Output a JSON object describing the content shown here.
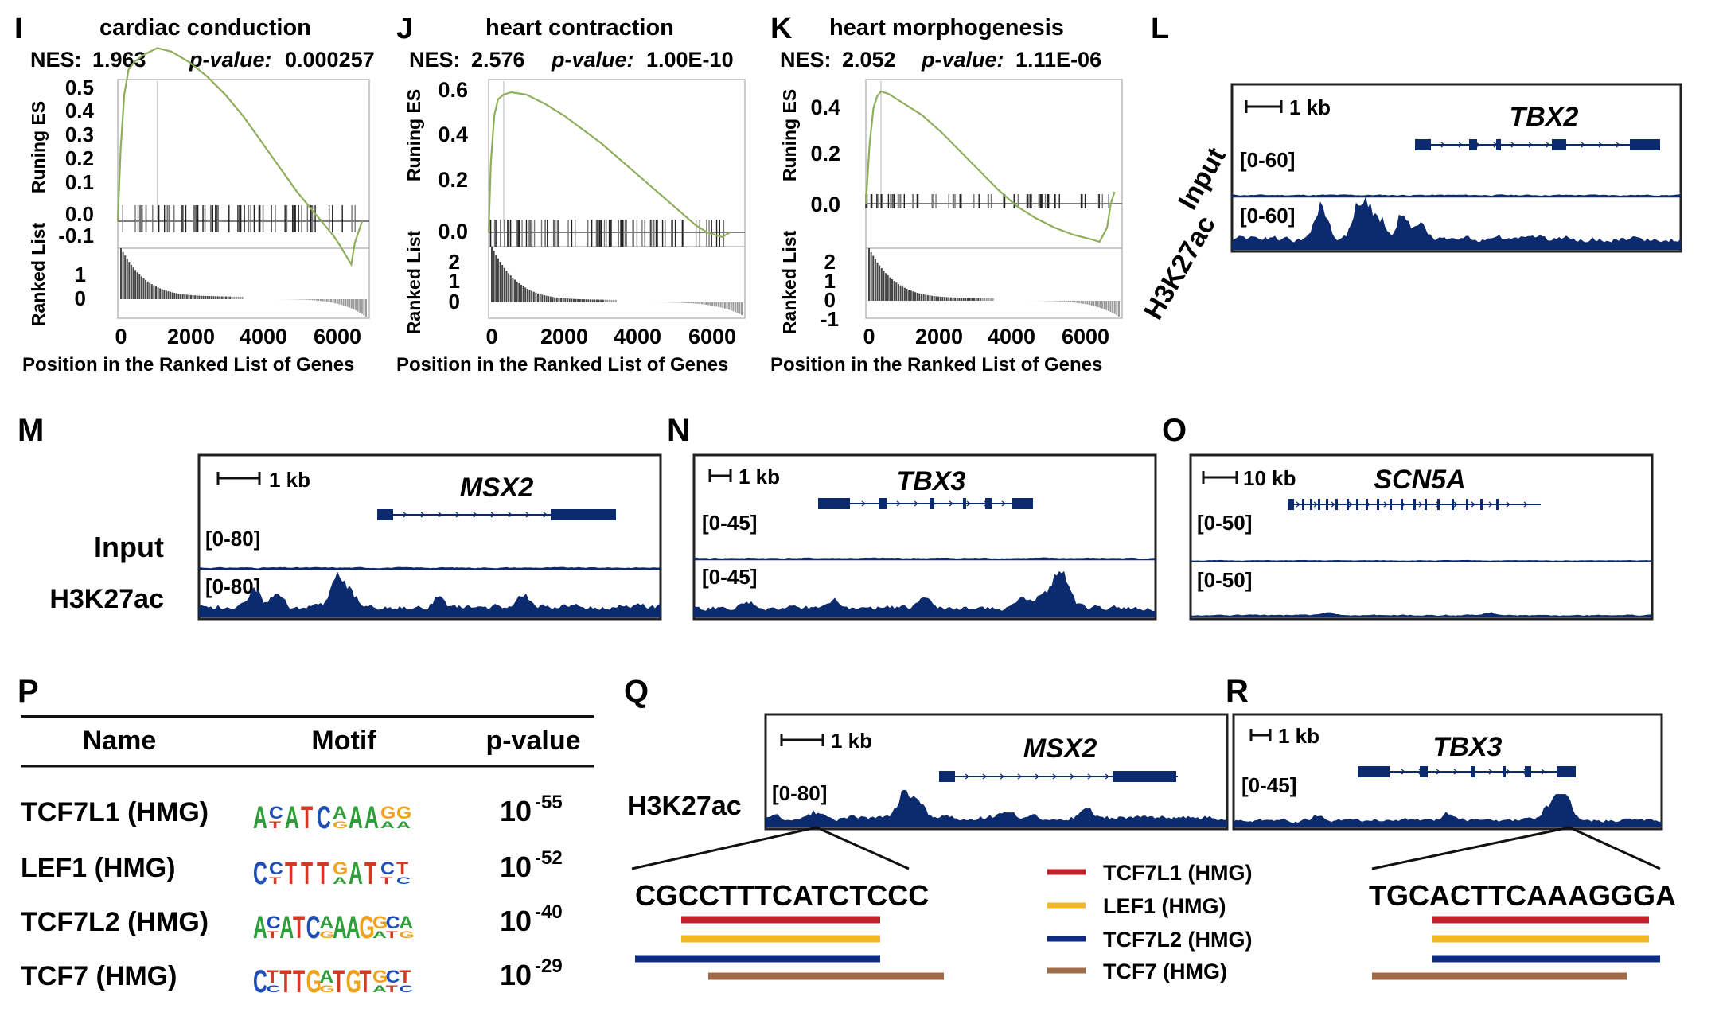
{
  "panel_letters": {
    "I": "I",
    "J": "J",
    "K": "K",
    "L": "L",
    "M": "M",
    "N": "N",
    "O": "O",
    "P": "P",
    "Q": "Q",
    "R": "R"
  },
  "gsea": {
    "running_es_label": "Runing ES",
    "ranked_list_label": "Ranked List",
    "x_axis_label": "Position in the Ranked List of Genes",
    "x_ticks": [
      "0",
      "2000",
      "4000",
      "6000"
    ],
    "nes_label": "NES:",
    "pvalue_label": "p-value:",
    "panels": [
      {
        "id": "I",
        "title": "cardiac conduction",
        "nes": "1.963",
        "pvalue": "0.000257",
        "es_ticks": [
          "0.5",
          "0.4",
          "0.3",
          "0.2",
          "0.1",
          "0.0",
          "-0.1"
        ],
        "rank_ticks": [
          "1",
          "0"
        ]
      },
      {
        "id": "J",
        "title": "heart contraction",
        "nes": "2.576",
        "pvalue": "1.00E-10",
        "es_ticks": [
          "0.6",
          "0.4",
          "0.2",
          "0.0"
        ],
        "rank_ticks": [
          "2",
          "1",
          "0"
        ]
      },
      {
        "id": "K",
        "title": "heart morphogenesis",
        "nes": "2.052",
        "pvalue": "1.11E-06",
        "es_ticks": [
          "0.4",
          "0.2",
          "0.0"
        ],
        "rank_ticks": [
          "2",
          "1",
          "0",
          "-1"
        ]
      }
    ]
  },
  "chart_data": [
    {
      "type": "line",
      "panel": "I",
      "title": "cardiac conduction",
      "xlabel": "Position in the Ranked List of Genes",
      "ylabel": "Runing ES",
      "xlim": [
        0,
        7000
      ],
      "ylim": [
        -0.15,
        0.5
      ],
      "series": [
        {
          "x": [
            0,
            80,
            180,
            300,
            450,
            700,
            900,
            1100,
            1300,
            1500,
            2000,
            2500,
            3000,
            3500,
            4000,
            4500,
            5000,
            5500,
            6000,
            6200,
            6500,
            6600,
            6800
          ],
          "y": [
            0,
            0.2,
            0.35,
            0.42,
            0.44,
            0.46,
            0.47,
            0.48,
            0.475,
            0.47,
            0.44,
            0.4,
            0.35,
            0.29,
            0.22,
            0.15,
            0.08,
            0.02,
            -0.04,
            -0.07,
            -0.12,
            -0.06,
            0
          ]
        }
      ],
      "peak_x": 1100
    },
    {
      "type": "line",
      "panel": "J",
      "title": "heart contraction",
      "xlabel": "Position in the Ranked List of Genes",
      "ylabel": "Runing ES",
      "xlim": [
        0,
        6800
      ],
      "ylim": [
        -0.05,
        0.65
      ],
      "series": [
        {
          "x": [
            0,
            60,
            150,
            250,
            400,
            600,
            800,
            1000,
            1500,
            2000,
            2500,
            3000,
            3500,
            4000,
            4500,
            5000,
            5500,
            5800,
            6000,
            6200,
            6400
          ],
          "y": [
            0,
            0.3,
            0.5,
            0.57,
            0.59,
            0.6,
            0.595,
            0.59,
            0.55,
            0.5,
            0.44,
            0.38,
            0.31,
            0.24,
            0.17,
            0.1,
            0.03,
            0.0,
            -0.01,
            -0.02,
            0
          ]
        }
      ],
      "peak_x": 400
    },
    {
      "type": "line",
      "panel": "K",
      "title": "heart morphogenesis",
      "xlabel": "Position in the Ranked List of Genes",
      "ylabel": "Runing ES",
      "xlim": [
        0,
        6800
      ],
      "ylim": [
        -0.2,
        0.5
      ],
      "series": [
        {
          "x": [
            0,
            100,
            200,
            300,
            400,
            600,
            800,
            1000,
            1500,
            2000,
            2500,
            3000,
            3500,
            4000,
            4500,
            5000,
            5500,
            6000,
            6200,
            6400,
            6500,
            6600
          ],
          "y": [
            0,
            0.25,
            0.4,
            0.45,
            0.47,
            0.46,
            0.44,
            0.42,
            0.37,
            0.3,
            0.22,
            0.14,
            0.06,
            -0.01,
            -0.06,
            -0.1,
            -0.13,
            -0.15,
            -0.16,
            -0.1,
            0.0,
            0.05
          ]
        }
      ],
      "peak_x": 400
    }
  ],
  "tracks": {
    "input_label": "Input",
    "h3k27ac_label": "H3K27ac",
    "L": {
      "gene": "TBX2",
      "scale": "1 kb",
      "input_range": "[0-60]",
      "h3k27ac_range": "[0-60]"
    },
    "M": {
      "gene": "MSX2",
      "scale": "1 kb",
      "input_range": "[0-80]",
      "h3k27ac_range": "[0-80]"
    },
    "N": {
      "gene": "TBX3",
      "scale": "1 kb",
      "input_range": "[0-45]",
      "h3k27ac_range": "[0-45]"
    },
    "O": {
      "gene": "SCN5A",
      "scale": "10 kb",
      "input_range": "[0-50]",
      "h3k27ac_range": "[0-50]"
    },
    "Q": {
      "gene": "MSX2",
      "scale": "1 kb",
      "range": "[0-80]",
      "label": "H3K27ac",
      "sequence": "CGCCTTTCATCTCCC"
    },
    "R": {
      "gene": "TBX3",
      "scale": "1 kb",
      "range": "[0-45]",
      "sequence": "TGCACTTCAAAGGGA"
    }
  },
  "motif_table": {
    "headers": {
      "name": "Name",
      "motif": "Motif",
      "pvalue": "p-value"
    },
    "rows": [
      {
        "name": "TCF7L1 (HMG)",
        "motif": "ACATCAAAGG",
        "base": "10",
        "exp": "-55"
      },
      {
        "name": "LEF1 (HMG)",
        "motif": "CCTTTGATCT",
        "base": "10",
        "exp": "-52"
      },
      {
        "name": "TCF7L2 (HMG)",
        "motif": "ACATCAAAGGCA",
        "base": "10",
        "exp": "-40"
      },
      {
        "name": "TCF7 (HMG)",
        "motif": "CTTTGATGTGCT",
        "base": "10",
        "exp": "-29"
      }
    ]
  },
  "legend": [
    {
      "label": "TCF7L1 (HMG)",
      "color": "#c0202a"
    },
    {
      "label": "LEF1 (HMG)",
      "color": "#f2b824"
    },
    {
      "label": "TCF7L2 (HMG)",
      "color": "#0d2b80"
    },
    {
      "label": "TCF7 (HMG)",
      "color": "#a06a44"
    }
  ],
  "colors": {
    "track": "#0c2a6e",
    "es_line": "#8fae5c",
    "text": "#111111",
    "gene": "#0c2a6e"
  }
}
